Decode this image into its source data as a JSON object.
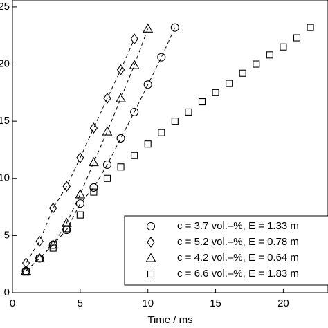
{
  "chart_data": {
    "type": "scatter",
    "x_label": "Time / ms",
    "xlim": [
      0,
      23.3
    ],
    "ylim": [
      0,
      25.6
    ],
    "xticks": [
      0,
      5,
      10,
      15,
      20
    ],
    "yticks": [
      0,
      5,
      10,
      15,
      20,
      25
    ],
    "legend": "lower right",
    "series": [
      {
        "name": "c = 3.7 vol.–%, E = 1.33 m",
        "color": "#000000",
        "marker": "circle",
        "dashed": true,
        "x": [
          1,
          2,
          3,
          4,
          5,
          6,
          7,
          8,
          9,
          10,
          11,
          12
        ],
        "values": [
          1.9,
          3.0,
          4.2,
          5.5,
          7.8,
          9.2,
          11.2,
          13.5,
          15.8,
          18.2,
          20.6,
          23.2
        ]
      },
      {
        "name": "c = 5.2 vol.–%, E = 0.78 m",
        "color": "#000000",
        "marker": "diamond",
        "dashed": true,
        "x": [
          1,
          2,
          3,
          4,
          5,
          6,
          7,
          8,
          9
        ],
        "values": [
          2.6,
          4.5,
          7.4,
          9.3,
          11.8,
          14.4,
          17.0,
          19.5,
          22.2
        ]
      },
      {
        "name": "c = 4.2 vol.–%, E = 0.64 m",
        "color": "#000000",
        "marker": "triangle",
        "dashed": true,
        "x": [
          1,
          2,
          3,
          4,
          5,
          6,
          7,
          8,
          9,
          10
        ],
        "values": [
          1.9,
          3.0,
          4.2,
          6.1,
          8.6,
          11.4,
          14.1,
          17.0,
          19.9,
          23.1
        ]
      },
      {
        "name": "c = 6.6 vol.–%, E = 1.83 m",
        "color": "#000000",
        "marker": "square",
        "dashed": false,
        "x": [
          1,
          2,
          3,
          4,
          5,
          6,
          7,
          8,
          9,
          10,
          11,
          12,
          13,
          14,
          15,
          16,
          17,
          18,
          19,
          20,
          21,
          22
        ],
        "values": [
          1.8,
          3.0,
          3.9,
          5.6,
          6.8,
          8.8,
          10.0,
          11.0,
          12.0,
          13.0,
          14.0,
          15.0,
          15.8,
          16.7,
          17.5,
          18.3,
          19.2,
          20.0,
          20.8,
          21.5,
          22.3,
          23.2
        ]
      }
    ]
  }
}
